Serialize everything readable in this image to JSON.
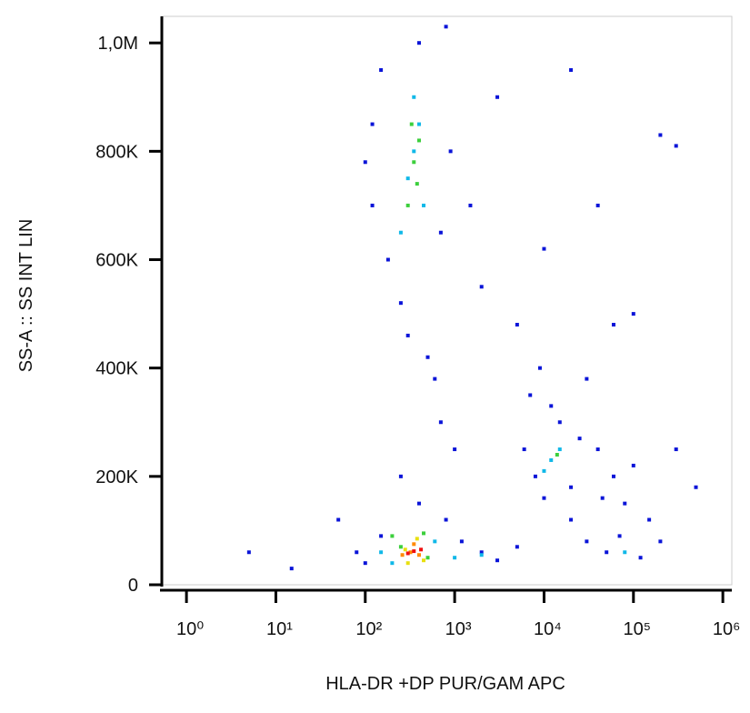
{
  "chart_data": {
    "type": "scatter",
    "x_label": "HLA-DR +DP PUR/GAM APC",
    "y_label": "SS-A :: SS INT LIN",
    "x_scale": "log",
    "xlim": [
      0.53,
      1260000
    ],
    "xticks": [
      {
        "value": 1,
        "label": "10⁰"
      },
      {
        "value": 10,
        "label": "10¹"
      },
      {
        "value": 100,
        "label": "10²"
      },
      {
        "value": 1000,
        "label": "10³"
      },
      {
        "value": 10000,
        "label": "10⁴"
      },
      {
        "value": 100000,
        "label": "10⁵"
      },
      {
        "value": 1000000,
        "label": "10⁶"
      }
    ],
    "ylim": [
      0,
      1049000
    ],
    "yticks": [
      0,
      {
        "value": 200000,
        "label": "200K"
      },
      {
        "value": 400000,
        "label": "400K"
      },
      {
        "value": 600000,
        "label": "600K"
      },
      {
        "value": 800000,
        "label": "800K"
      },
      {
        "value": 1000000,
        "label": "1,0M"
      }
    ],
    "series": [
      {
        "color": "#0a14d8",
        "x": [
          150,
          120,
          180,
          250,
          700,
          900,
          1500,
          120,
          400,
          800,
          100,
          2000,
          300,
          500,
          600,
          50,
          80,
          100,
          150,
          800,
          1200,
          2000,
          3000,
          5000,
          7000,
          6000,
          9000,
          15000,
          20000,
          30000,
          40000,
          60000,
          80000,
          100000,
          150000,
          200000,
          30000,
          50000,
          120000,
          20000,
          10000,
          8000,
          12000,
          25000,
          45000,
          70000,
          300000,
          500000,
          40000,
          100000,
          200000,
          10000,
          5000,
          1000,
          700,
          60000,
          20000,
          3000,
          300000,
          15,
          5,
          400,
          250
        ],
        "y": [
          950000,
          700000,
          600000,
          520000,
          650000,
          800000,
          700000,
          850000,
          1000000,
          1030000,
          780000,
          550000,
          460000,
          420000,
          380000,
          120000,
          60000,
          40000,
          90000,
          120000,
          80000,
          60000,
          45000,
          70000,
          350000,
          250000,
          400000,
          300000,
          180000,
          380000,
          250000,
          200000,
          150000,
          220000,
          120000,
          80000,
          80000,
          60000,
          50000,
          120000,
          160000,
          200000,
          330000,
          270000,
          160000,
          90000,
          250000,
          180000,
          700000,
          500000,
          830000,
          620000,
          480000,
          250000,
          300000,
          480000,
          950000,
          900000,
          810000,
          30000,
          60000,
          150000,
          200000
        ]
      },
      {
        "color": "#10b8e8",
        "x": [
          300,
          400,
          250,
          450,
          350,
          12000,
          15000,
          10000,
          1000,
          2000,
          80000,
          600,
          150,
          200,
          350
        ],
        "y": [
          750000,
          850000,
          650000,
          700000,
          900000,
          230000,
          250000,
          210000,
          50000,
          55000,
          60000,
          80000,
          60000,
          40000,
          800000
        ]
      },
      {
        "color": "#3ccf3c",
        "x": [
          350,
          300,
          400,
          330,
          380,
          14000,
          250,
          500,
          200,
          450
        ],
        "y": [
          780000,
          700000,
          820000,
          850000,
          740000,
          240000,
          70000,
          50000,
          90000,
          95000
        ]
      },
      {
        "color": "#e8e010",
        "x": [
          280,
          450,
          300,
          380
        ],
        "y": [
          65000,
          45000,
          40000,
          85000
        ]
      },
      {
        "color": "#ff8a00",
        "x": [
          320,
          400,
          350,
          260
        ],
        "y": [
          60000,
          55000,
          75000,
          55000
        ]
      },
      {
        "color": "#f01010",
        "x": [
          350,
          300,
          420
        ],
        "y": [
          62000,
          58000,
          65000
        ]
      }
    ]
  }
}
